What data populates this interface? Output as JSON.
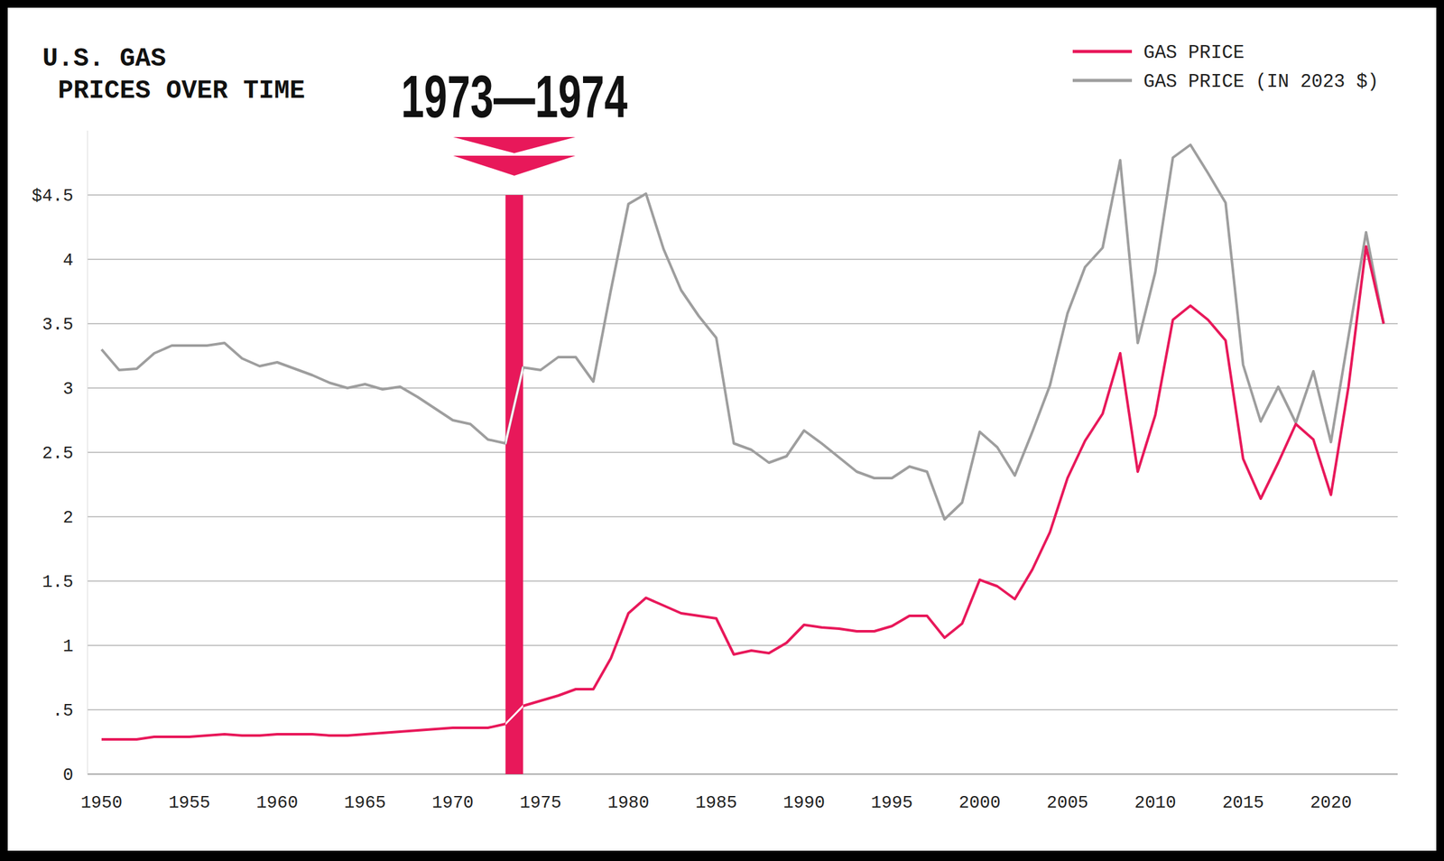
{
  "chart_data": {
    "type": "line",
    "title": "U.S. GAS PRICES OVER TIME",
    "x": [
      1950,
      1951,
      1952,
      1953,
      1954,
      1955,
      1956,
      1957,
      1958,
      1959,
      1960,
      1961,
      1962,
      1963,
      1964,
      1965,
      1966,
      1967,
      1968,
      1969,
      1970,
      1971,
      1972,
      1973,
      1974,
      1975,
      1976,
      1977,
      1978,
      1979,
      1980,
      1981,
      1982,
      1983,
      1984,
      1985,
      1986,
      1987,
      1988,
      1989,
      1990,
      1991,
      1992,
      1993,
      1994,
      1995,
      1996,
      1997,
      1998,
      1999,
      2000,
      2001,
      2002,
      2003,
      2004,
      2005,
      2006,
      2007,
      2008,
      2009,
      2010,
      2011,
      2012,
      2013,
      2014,
      2015,
      2016,
      2017,
      2018,
      2019,
      2020,
      2021,
      2022,
      2023
    ],
    "series": [
      {
        "name": "GAS PRICE",
        "color": "#e8185a",
        "values": [
          0.27,
          0.27,
          0.27,
          0.29,
          0.29,
          0.29,
          0.3,
          0.31,
          0.3,
          0.3,
          0.31,
          0.31,
          0.31,
          0.3,
          0.3,
          0.31,
          0.32,
          0.33,
          0.34,
          0.35,
          0.36,
          0.36,
          0.36,
          0.39,
          0.53,
          0.57,
          0.61,
          0.66,
          0.66,
          0.9,
          1.25,
          1.37,
          1.31,
          1.25,
          1.23,
          1.21,
          0.93,
          0.96,
          0.94,
          1.02,
          1.16,
          1.14,
          1.13,
          1.11,
          1.11,
          1.15,
          1.23,
          1.23,
          1.06,
          1.17,
          1.51,
          1.46,
          1.36,
          1.59,
          1.88,
          2.3,
          2.59,
          2.8,
          3.27,
          2.35,
          2.79,
          3.53,
          3.64,
          3.53,
          3.37,
          2.45,
          2.14,
          2.42,
          2.72,
          2.6,
          2.17,
          3.01,
          4.1,
          3.5
        ]
      },
      {
        "name": "GAS PRICE (IN 2023 $)",
        "color": "#9e9e9e",
        "values": [
          3.3,
          3.14,
          3.15,
          3.27,
          3.33,
          3.33,
          3.33,
          3.35,
          3.23,
          3.17,
          3.2,
          3.15,
          3.1,
          3.04,
          3.0,
          3.03,
          2.99,
          3.01,
          2.93,
          2.84,
          2.75,
          2.72,
          2.6,
          2.57,
          3.16,
          3.14,
          3.24,
          3.24,
          3.05,
          3.76,
          4.43,
          4.51,
          4.08,
          3.76,
          3.56,
          3.39,
          2.57,
          2.52,
          2.42,
          2.47,
          2.67,
          2.57,
          2.46,
          2.35,
          2.3,
          2.3,
          2.39,
          2.35,
          1.98,
          2.11,
          2.66,
          2.54,
          2.32,
          2.66,
          3.02,
          3.58,
          3.94,
          4.09,
          4.77,
          3.35,
          3.9,
          4.79,
          4.89,
          4.67,
          4.44,
          3.18,
          2.74,
          3.01,
          2.73,
          3.13,
          2.58,
          3.4,
          4.21,
          3.5
        ]
      }
    ],
    "xlim": [
      1949.2,
      2023.8
    ],
    "xticks": [
      1950,
      1955,
      1960,
      1965,
      1970,
      1975,
      1980,
      1985,
      1990,
      1995,
      2000,
      2005,
      2010,
      2015,
      2020
    ],
    "ylim": [
      0,
      5
    ],
    "yticks": [
      0,
      {
        "value": 0.5,
        "label": ".5"
      },
      1,
      1.5,
      2,
      2.5,
      3,
      3.5,
      4,
      {
        "value": 4.5,
        "label": "$4.5"
      }
    ],
    "grid": true,
    "legend": "top-right",
    "annotations": [
      {
        "text": "1973—1974",
        "x": [
          1973,
          1974
        ],
        "y": [
          0,
          4.5
        ],
        "color": "#e8185a"
      }
    ]
  }
}
